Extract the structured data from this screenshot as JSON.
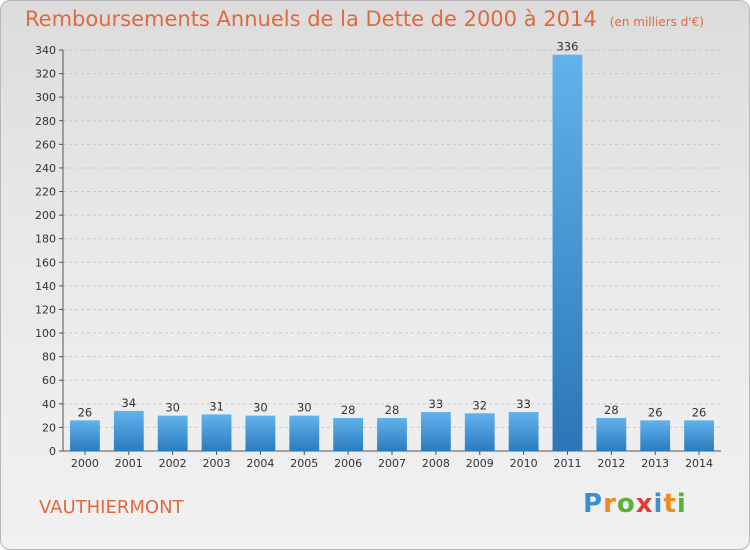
{
  "title": "Remboursements Annuels de la Dette de 2000 à 2014",
  "subtitle": "(en milliers d'€)",
  "commune": "VAUTHIERMONT",
  "brand": {
    "letters": [
      "P",
      "r",
      "o",
      "x",
      "i",
      "t",
      "i"
    ],
    "colors": [
      "#3a8fd0",
      "#f08a1c",
      "#5bb03a",
      "#e03a3a",
      "#3a8fd0",
      "#f08a1c",
      "#5bb03a"
    ]
  },
  "colors": {
    "bar_top": "#62b2ec",
    "bar_bottom": "#2b7cc0",
    "bar_highlight_top": "#62b2ec",
    "bar_highlight_bottom": "#2a76b6",
    "text": "#333333",
    "title": "#e06a3c"
  },
  "chart_data": {
    "type": "bar",
    "title": "Remboursements Annuels de la Dette de 2000 à 2014",
    "xlabel": "",
    "ylabel": "",
    "categories": [
      "2000",
      "2001",
      "2002",
      "2003",
      "2004",
      "2005",
      "2006",
      "2007",
      "2008",
      "2009",
      "2010",
      "2011",
      "2012",
      "2013",
      "2014"
    ],
    "values": [
      26,
      34,
      30,
      31,
      30,
      30,
      28,
      28,
      33,
      32,
      33,
      336,
      28,
      26,
      26
    ],
    "ylim": [
      0,
      340
    ],
    "yticks": [
      0,
      20,
      40,
      60,
      80,
      100,
      120,
      140,
      160,
      180,
      200,
      220,
      240,
      260,
      280,
      300,
      320,
      340
    ],
    "grid": true,
    "highlight_index": 11
  }
}
